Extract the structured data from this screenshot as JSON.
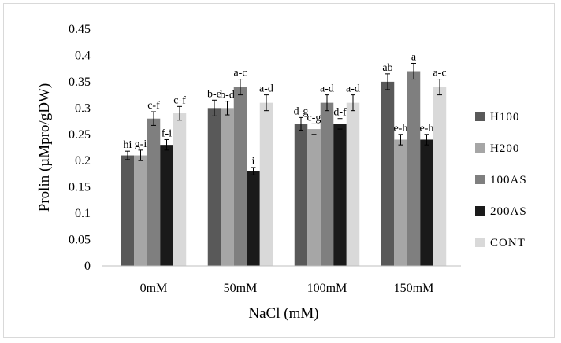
{
  "chart_data": {
    "type": "bar",
    "title": "",
    "xlabel": "NaCl (mM)",
    "ylabel": "Prolin (µMpro/gDW)",
    "categories": [
      "0mM",
      "50mM",
      "100mM",
      "150mM"
    ],
    "ylim": [
      0,
      0.45
    ],
    "yticks": [
      "0",
      "0.05",
      "0.1",
      "0.15",
      "0.2",
      "0.25",
      "0.3",
      "0.35",
      "0.4",
      "0.45"
    ],
    "ytick_values": [
      0,
      0.05,
      0.1,
      0.15,
      0.2,
      0.25,
      0.3,
      0.35,
      0.4,
      0.45
    ],
    "grid": false,
    "legend_position": "right",
    "series": [
      {
        "name": "H100",
        "color": "#595959",
        "values": [
          0.21,
          0.3,
          0.27,
          0.35
        ],
        "errors": [
          0.008,
          0.015,
          0.012,
          0.015
        ],
        "labels": [
          "hi",
          "b-e",
          "d-g",
          "ab"
        ]
      },
      {
        "name": "H200",
        "color": "#a6a6a6",
        "values": [
          0.21,
          0.3,
          0.26,
          0.24
        ],
        "errors": [
          0.01,
          0.013,
          0.01,
          0.01
        ],
        "labels": [
          "g-i",
          "b-d",
          "c-g",
          "e-h"
        ]
      },
      {
        "name": "100AS",
        "color": "#7f7f7f",
        "values": [
          0.28,
          0.34,
          0.31,
          0.37
        ],
        "errors": [
          0.013,
          0.015,
          0.015,
          0.015
        ],
        "labels": [
          "c-f",
          "a-c",
          "a-d",
          "a"
        ]
      },
      {
        "name": "200AS",
        "color": "#1a1a1a",
        "values": [
          0.23,
          0.18,
          0.27,
          0.24
        ],
        "errors": [
          0.01,
          0.007,
          0.01,
          0.01
        ],
        "labels": [
          "f-i",
          "i",
          "d-f",
          "e-h"
        ]
      },
      {
        "name": "CONT",
        "color": "#d9d9d9",
        "values": [
          0.29,
          0.31,
          0.31,
          0.34
        ],
        "errors": [
          0.013,
          0.015,
          0.015,
          0.015
        ],
        "labels": [
          "c-f",
          "a-d",
          "a-d",
          "a-c"
        ]
      }
    ]
  }
}
